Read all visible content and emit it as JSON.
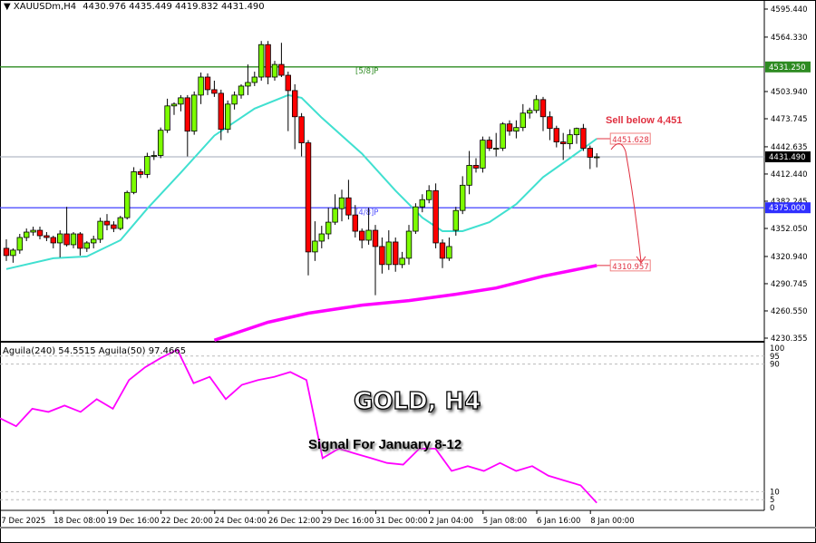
{
  "header": {
    "symbol": "XAUUSDm,H4",
    "ohlc": "4430.976 4435.449 4419.832 4431.490"
  },
  "indicator_header": "Aguila(240) 54.5515  Aguila(50) 97.4665",
  "overlay": {
    "title": "GOLD, H4",
    "subtitle": "Signal For January 8-12",
    "sell_note": "Sell below 4,451"
  },
  "colors": {
    "bull": "#7cfc00",
    "bear": "#ff0000",
    "fast_ma": "#40e0d0",
    "slow_ma": "#ff00ff",
    "level_58": "#2e8b22",
    "level_48": "#5050ff",
    "current": "#a0a8b8",
    "annotation": "#e03040"
  },
  "chart_data": [
    {
      "type": "candlestick",
      "ylim": [
        4230.355,
        4595.44
      ],
      "yticks": [
        "4595.440",
        "4564.330",
        "4503.940",
        "4473.745",
        "4442.635",
        "4412.440",
        "4382.245",
        "4352.050",
        "4320.940",
        "4290.745",
        "4260.550",
        "4230.355"
      ],
      "xticks": [
        {
          "bar": 0,
          "label": "17 Dec 2025"
        },
        {
          "bar": 8,
          "label": "18 Dec 08:00"
        },
        {
          "bar": 16,
          "label": "19 Dec 16:00"
        },
        {
          "bar": 24,
          "label": "22 Dec 20:00"
        },
        {
          "bar": 32,
          "label": "24 Dec 04:00"
        },
        {
          "bar": 40,
          "label": "26 Dec 12:00"
        },
        {
          "bar": 48,
          "label": "29 Dec 16:00"
        },
        {
          "bar": 56,
          "label": "31 Dec 00:00"
        },
        {
          "bar": 64,
          "label": "2 Jan 04:00"
        },
        {
          "bar": 72,
          "label": "5 Jan 08:00"
        },
        {
          "bar": 80,
          "label": "6 Jan 16:00"
        },
        {
          "bar": 88,
          "label": "8 Jan 00:00"
        }
      ],
      "levels": [
        {
          "name": "[5/8]P",
          "value": 4531.25,
          "label": "4531.250",
          "color": "#2e8b22"
        },
        {
          "name": "current",
          "value": 4431.49,
          "label": "4431.490",
          "color": "#000000"
        },
        {
          "name": "[4/8]P",
          "value": 4375.0,
          "label": "4375.000",
          "color": "#3030ff"
        }
      ],
      "annotations": [
        {
          "value": 4451.628,
          "label": "4451.628"
        },
        {
          "value": 4310.957,
          "label": "4310.957"
        }
      ],
      "ohlc": [
        [
          4330,
          4340,
          4316,
          4322
        ],
        [
          4322,
          4330,
          4314,
          4328
        ],
        [
          4328,
          4346,
          4324,
          4342
        ],
        [
          4342,
          4352,
          4338,
          4348
        ],
        [
          4348,
          4354,
          4344,
          4350
        ],
        [
          4350,
          4354,
          4340,
          4344
        ],
        [
          4344,
          4348,
          4338,
          4342
        ],
        [
          4342,
          4344,
          4330,
          4336
        ],
        [
          4336,
          4350,
          4320,
          4346
        ],
        [
          4346,
          4376,
          4332,
          4334
        ],
        [
          4334,
          4348,
          4330,
          4346
        ],
        [
          4346,
          4348,
          4322,
          4330
        ],
        [
          4330,
          4338,
          4326,
          4336
        ],
        [
          4336,
          4344,
          4330,
          4340
        ],
        [
          4340,
          4364,
          4336,
          4360
        ],
        [
          4360,
          4368,
          4350,
          4356
        ],
        [
          4356,
          4360,
          4348,
          4352
        ],
        [
          4352,
          4366,
          4350,
          4364
        ],
        [
          4364,
          4394,
          4362,
          4392
        ],
        [
          4392,
          4420,
          4390,
          4415
        ],
        [
          4415,
          4418,
          4408,
          4412
        ],
        [
          4412,
          4436,
          4408,
          4432
        ],
        [
          4433,
          4438,
          4428,
          4433
        ],
        [
          4433,
          4464,
          4430,
          4461
        ],
        [
          4461,
          4496,
          4458,
          4488
        ],
        [
          4488,
          4492,
          4478,
          4490
        ],
        [
          4490,
          4500,
          4482,
          4497
        ],
        [
          4497,
          4500,
          4432,
          4460
        ],
        [
          4460,
          4504,
          4456,
          4500
        ],
        [
          4500,
          4525,
          4490,
          4520
        ],
        [
          4520,
          4524,
          4500,
          4506
        ],
        [
          4506,
          4516,
          4498,
          4502
        ],
        [
          4502,
          4506,
          4450,
          4462
        ],
        [
          4462,
          4494,
          4458,
          4490
        ],
        [
          4490,
          4504,
          4484,
          4500
        ],
        [
          4500,
          4512,
          4496,
          4510
        ],
        [
          4510,
          4534,
          4500,
          4514
        ],
        [
          4514,
          4526,
          4510,
          4520
        ],
        [
          4520,
          4560,
          4516,
          4556
        ],
        [
          4556,
          4560,
          4512,
          4520
        ],
        [
          4520,
          4538,
          4516,
          4534
        ],
        [
          4534,
          4558,
          4520,
          4522
        ],
        [
          4522,
          4526,
          4460,
          4505
        ],
        [
          4505,
          4512,
          4440,
          4476
        ],
        [
          4476,
          4480,
          4432,
          4447
        ],
        [
          4447,
          4450,
          4300,
          4326
        ],
        [
          4326,
          4360,
          4316,
          4338
        ],
        [
          4338,
          4355,
          4330,
          4346
        ],
        [
          4346,
          4375,
          4340,
          4359
        ],
        [
          4359,
          4390,
          4356,
          4374
        ],
        [
          4374,
          4395,
          4360,
          4386
        ],
        [
          4386,
          4406,
          4362,
          4367
        ],
        [
          4367,
          4378,
          4342,
          4349
        ],
        [
          4349,
          4352,
          4330,
          4339
        ],
        [
          4339,
          4375,
          4334,
          4350
        ],
        [
          4350,
          4356,
          4278,
          4332
        ],
        [
          4332,
          4342,
          4302,
          4312
        ],
        [
          4312,
          4350,
          4306,
          4337
        ],
        [
          4337,
          4342,
          4304,
          4312
        ],
        [
          4312,
          4326,
          4308,
          4319
        ],
        [
          4319,
          4356,
          4312,
          4349
        ],
        [
          4349,
          4380,
          4346,
          4376
        ],
        [
          4376,
          4390,
          4370,
          4384
        ],
        [
          4384,
          4400,
          4380,
          4394
        ],
        [
          4394,
          4402,
          4330,
          4336
        ],
        [
          4336,
          4340,
          4308,
          4319
        ],
        [
          4319,
          4342,
          4316,
          4332
        ],
        [
          4350,
          4376,
          4344,
          4372
        ],
        [
          4372,
          4410,
          4368,
          4400
        ],
        [
          4400,
          4438,
          4390,
          4422
        ],
        [
          4422,
          4430,
          4414,
          4419
        ],
        [
          4419,
          4454,
          4414,
          4450
        ],
        [
          4450,
          4454,
          4438,
          4441
        ],
        [
          4441,
          4458,
          4432,
          4441
        ],
        [
          4441,
          4470,
          4438,
          4468
        ],
        [
          4468,
          4472,
          4455,
          4460
        ],
        [
          4460,
          4472,
          4452,
          4464
        ],
        [
          4464,
          4490,
          4460,
          4480
        ],
        [
          4480,
          4486,
          4474,
          4483
        ],
        [
          4483,
          4500,
          4480,
          4495
        ],
        [
          4495,
          4498,
          4460,
          4476
        ],
        [
          4476,
          4482,
          4450,
          4463
        ],
        [
          4463,
          4466,
          4442,
          4448
        ],
        [
          4448,
          4458,
          4428,
          4446
        ],
        [
          4446,
          4462,
          4440,
          4456
        ],
        [
          4456,
          4464,
          4446,
          4463
        ],
        [
          4463,
          4468,
          4438,
          4441
        ],
        [
          4441,
          4444,
          4418,
          4431
        ],
        [
          4430.976,
          4435.449,
          4419.832,
          4431.49
        ]
      ],
      "fast_ma": [
        [
          0,
          4307
        ],
        [
          7,
          4319
        ],
        [
          12,
          4321
        ],
        [
          17,
          4339
        ],
        [
          21,
          4374
        ],
        [
          26,
          4414
        ],
        [
          31,
          4455
        ],
        [
          37,
          4485
        ],
        [
          42,
          4500
        ],
        [
          44,
          4497
        ],
        [
          47,
          4475
        ],
        [
          53,
          4435
        ],
        [
          58,
          4394
        ],
        [
          62,
          4364
        ],
        [
          65,
          4349
        ],
        [
          68,
          4349
        ],
        [
          72,
          4359
        ],
        [
          76,
          4379
        ],
        [
          80,
          4409
        ],
        [
          84,
          4430
        ],
        [
          88,
          4451.628
        ]
      ],
      "slow_ma": [
        [
          31,
          4228
        ],
        [
          39,
          4248
        ],
        [
          45,
          4258
        ],
        [
          53,
          4267
        ],
        [
          60,
          4272
        ],
        [
          67,
          4279
        ],
        [
          73,
          4286
        ],
        [
          80,
          4299
        ],
        [
          88,
          4310.957
        ]
      ]
    },
    {
      "type": "line",
      "name": "Aguila",
      "ylim": [
        0,
        100
      ],
      "yticks": [
        "100",
        "95",
        "90",
        "10",
        "5",
        "0"
      ],
      "levels": [
        95,
        90,
        10,
        5
      ],
      "values": [
        56,
        51,
        62,
        60,
        64,
        60,
        68,
        62,
        80,
        88,
        94,
        99,
        78,
        82,
        68,
        77,
        80,
        82,
        85,
        80,
        31,
        37,
        34,
        31,
        28,
        27,
        37,
        37,
        23,
        26,
        23,
        28,
        23,
        26,
        20,
        17,
        14,
        3
      ]
    }
  ]
}
